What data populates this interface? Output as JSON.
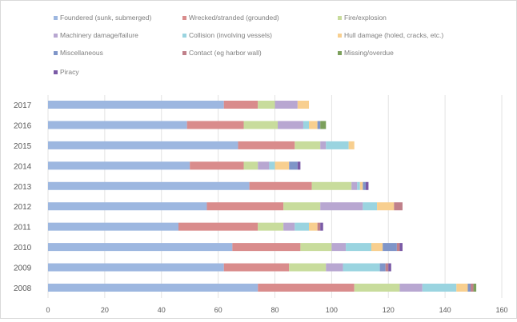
{
  "chart_data": {
    "type": "bar",
    "orientation": "horizontal",
    "stacked": true,
    "title": "",
    "xlabel": "",
    "ylabel": "",
    "xlim": [
      0,
      160
    ],
    "x_ticks": [
      "0",
      "20",
      "40",
      "60",
      "80",
      "100",
      "120",
      "140",
      "160"
    ],
    "grid": "vertical",
    "legend_position": "top",
    "categories": [
      "2017",
      "2016",
      "2015",
      "2014",
      "2013",
      "2012",
      "2011",
      "2010",
      "2009",
      "2008"
    ],
    "series": [
      {
        "name": "Foundered (sunk, submerged)",
        "color": "#9db7e0",
        "values": [
          62,
          49,
          67,
          50,
          71,
          56,
          46,
          65,
          62,
          74
        ]
      },
      {
        "name": "Wrecked/stranded (grounded)",
        "color": "#d98c8c",
        "values": [
          12,
          20,
          20,
          19,
          22,
          27,
          28,
          24,
          23,
          34
        ]
      },
      {
        "name": "Fire/explosion",
        "color": "#c8dc9c",
        "values": [
          6,
          12,
          9,
          5,
          14,
          13,
          9,
          11,
          13,
          16
        ]
      },
      {
        "name": "Machinery damage/failure",
        "color": "#b8a7d1",
        "values": [
          8,
          9,
          2,
          4,
          2,
          15,
          4,
          5,
          6,
          8
        ]
      },
      {
        "name": "Collision (involving vessels)",
        "color": "#9ad4e0",
        "values": [
          0,
          2,
          8,
          2,
          1,
          5,
          5,
          9,
          13,
          12
        ]
      },
      {
        "name": "Hull damage (holed, cracks, etc.)",
        "color": "#f8cf8f",
        "values": [
          4,
          3,
          2,
          5,
          1,
          6,
          3,
          4,
          0,
          4
        ]
      },
      {
        "name": "Miscellaneous",
        "color": "#7f95c8",
        "values": [
          0,
          1,
          0,
          3,
          1,
          0,
          0,
          5,
          2,
          1
        ]
      },
      {
        "name": "Contact (eg harbor wall)",
        "color": "#c0808a",
        "values": [
          0,
          0,
          0,
          0,
          0,
          3,
          1,
          1,
          1,
          1
        ]
      },
      {
        "name": "Missing/overdue",
        "color": "#7ca05c",
        "values": [
          0,
          2,
          0,
          0,
          0,
          0,
          0,
          0,
          0,
          1
        ]
      },
      {
        "name": "Piracy",
        "color": "#7a5aa6",
        "values": [
          0,
          0,
          0,
          1,
          1,
          0,
          1,
          1,
          1,
          0
        ]
      }
    ]
  }
}
